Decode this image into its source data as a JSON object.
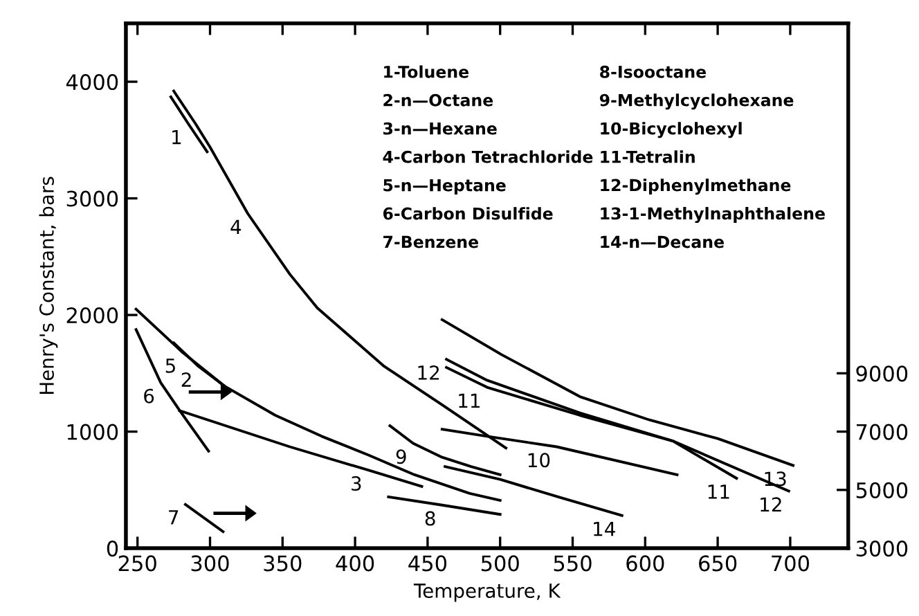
{
  "chart_data": {
    "type": "line",
    "xlabel": "Temperature, K",
    "ylabel": "Henry's Constant, bars",
    "xlim": [
      242,
      740
    ],
    "xticks": [
      250,
      300,
      350,
      400,
      450,
      500,
      550,
      600,
      650,
      700
    ],
    "ylim": [
      0,
      4500
    ],
    "yticks": [
      0,
      1000,
      2000,
      3000,
      4000
    ],
    "y2lim": [
      3000,
      21000
    ],
    "y2ticks": [
      3000,
      5000,
      7000,
      9000
    ],
    "grid": false,
    "legend": false,
    "marker": "none",
    "line_style": "solid",
    "series": [
      {
        "color": "#000000",
        "x": [
          273,
          285,
          298
        ],
        "values": [
          3870,
          3640,
          3400
        ]
      },
      {
        "color": "#000000",
        "x": [
          275,
          292,
          310
        ],
        "values": [
          1760,
          1560,
          1390
        ]
      },
      {
        "color": "#000000",
        "x": [
          279,
          355,
          409,
          446
        ],
        "values": [
          1180,
          870,
          670,
          530
        ]
      },
      {
        "color": "#000000",
        "x": [
          275,
          290,
          300,
          326,
          355,
          374,
          420,
          460,
          504
        ],
        "values": [
          3920,
          3640,
          3440,
          2870,
          2350,
          2060,
          1560,
          1230,
          860
        ]
      },
      {
        "color": "#000000",
        "x": [
          249,
          281,
          310,
          345,
          377,
          409,
          441,
          479,
          500
        ],
        "values": [
          2050,
          1680,
          1390,
          1140,
          960,
          800,
          630,
          470,
          410
        ]
      },
      {
        "color": "#000000",
        "axis": "y2",
        "x": [
          249,
          266,
          279,
          299
        ],
        "values": [
          10500,
          8680,
          7730,
          6330
        ]
      },
      {
        "color": "#000000",
        "axis": "y2",
        "x": [
          283,
          309
        ],
        "values": [
          4500,
          3570
        ]
      },
      {
        "color": "#000000",
        "x": [
          423,
          460,
          500
        ],
        "values": [
          440,
          370,
          290
        ]
      },
      {
        "color": "#000000",
        "x": [
          424,
          440,
          460,
          480,
          500
        ],
        "values": [
          1050,
          900,
          780,
          700,
          630
        ]
      },
      {
        "color": "#000000",
        "x": [
          460,
          491,
          539,
          622
        ],
        "values": [
          1020,
          960,
          870,
          630
        ]
      },
      {
        "color": "#000000",
        "x": [
          463,
          491,
          555,
          619,
          663
        ],
        "values": [
          1550,
          1380,
          1140,
          920,
          600
        ]
      },
      {
        "color": "#000000",
        "x": [
          463,
          491,
          555,
          619,
          699
        ],
        "values": [
          1620,
          1440,
          1160,
          920,
          490
        ]
      },
      {
        "color": "#000000",
        "x": [
          460,
          501,
          555,
          603,
          650,
          702
        ],
        "values": [
          1960,
          1660,
          1300,
          1100,
          940,
          710
        ]
      },
      {
        "color": "#000000",
        "x": [
          462,
          500,
          540,
          584
        ],
        "values": [
          700,
          590,
          440,
          280
        ]
      }
    ],
    "annotations": [
      {
        "text": "1",
        "x": 285,
        "y": 3640
      },
      {
        "text": "2",
        "x": 292,
        "y": 1560
      },
      {
        "text": "3",
        "x": 409,
        "y": 670
      },
      {
        "text": "4",
        "x": 326,
        "y": 2870
      },
      {
        "text": "5",
        "x": 281,
        "y": 1680
      },
      {
        "text": "6",
        "x": 266,
        "y": 1420
      },
      {
        "text": "7",
        "x": 283,
        "y": 380
      },
      {
        "text": "8",
        "x": 460,
        "y": 370
      },
      {
        "text": "9",
        "x": 440,
        "y": 900
      },
      {
        "text": "10",
        "x": 539,
        "y": 870
      },
      {
        "text": "11",
        "x": 491,
        "y": 1380
      },
      {
        "text": "12",
        "x": 463,
        "y": 1620
      },
      {
        "text": "13",
        "x": 702,
        "y": 710
      },
      {
        "text": "14",
        "x": 584,
        "y": 280
      },
      {
        "text": "11",
        "x": 663,
        "y": 600
      },
      {
        "text": "12",
        "x": 699,
        "y": 490
      },
      "1-Toluene",
      "2-n—Octane",
      "3-n—Hexane",
      "4-Carbon Tetrachloride",
      "5-n—Heptane",
      "6-Carbon Disulfide",
      "7-Benzene",
      "8-Isooctane",
      "9-Methylcyclohexane",
      "10-Bicyclohexyl",
      "11-Tetralin",
      "12-Diphenylmethane",
      "13-1-Methylnaphthalene",
      "14-n—Decane"
    ]
  }
}
